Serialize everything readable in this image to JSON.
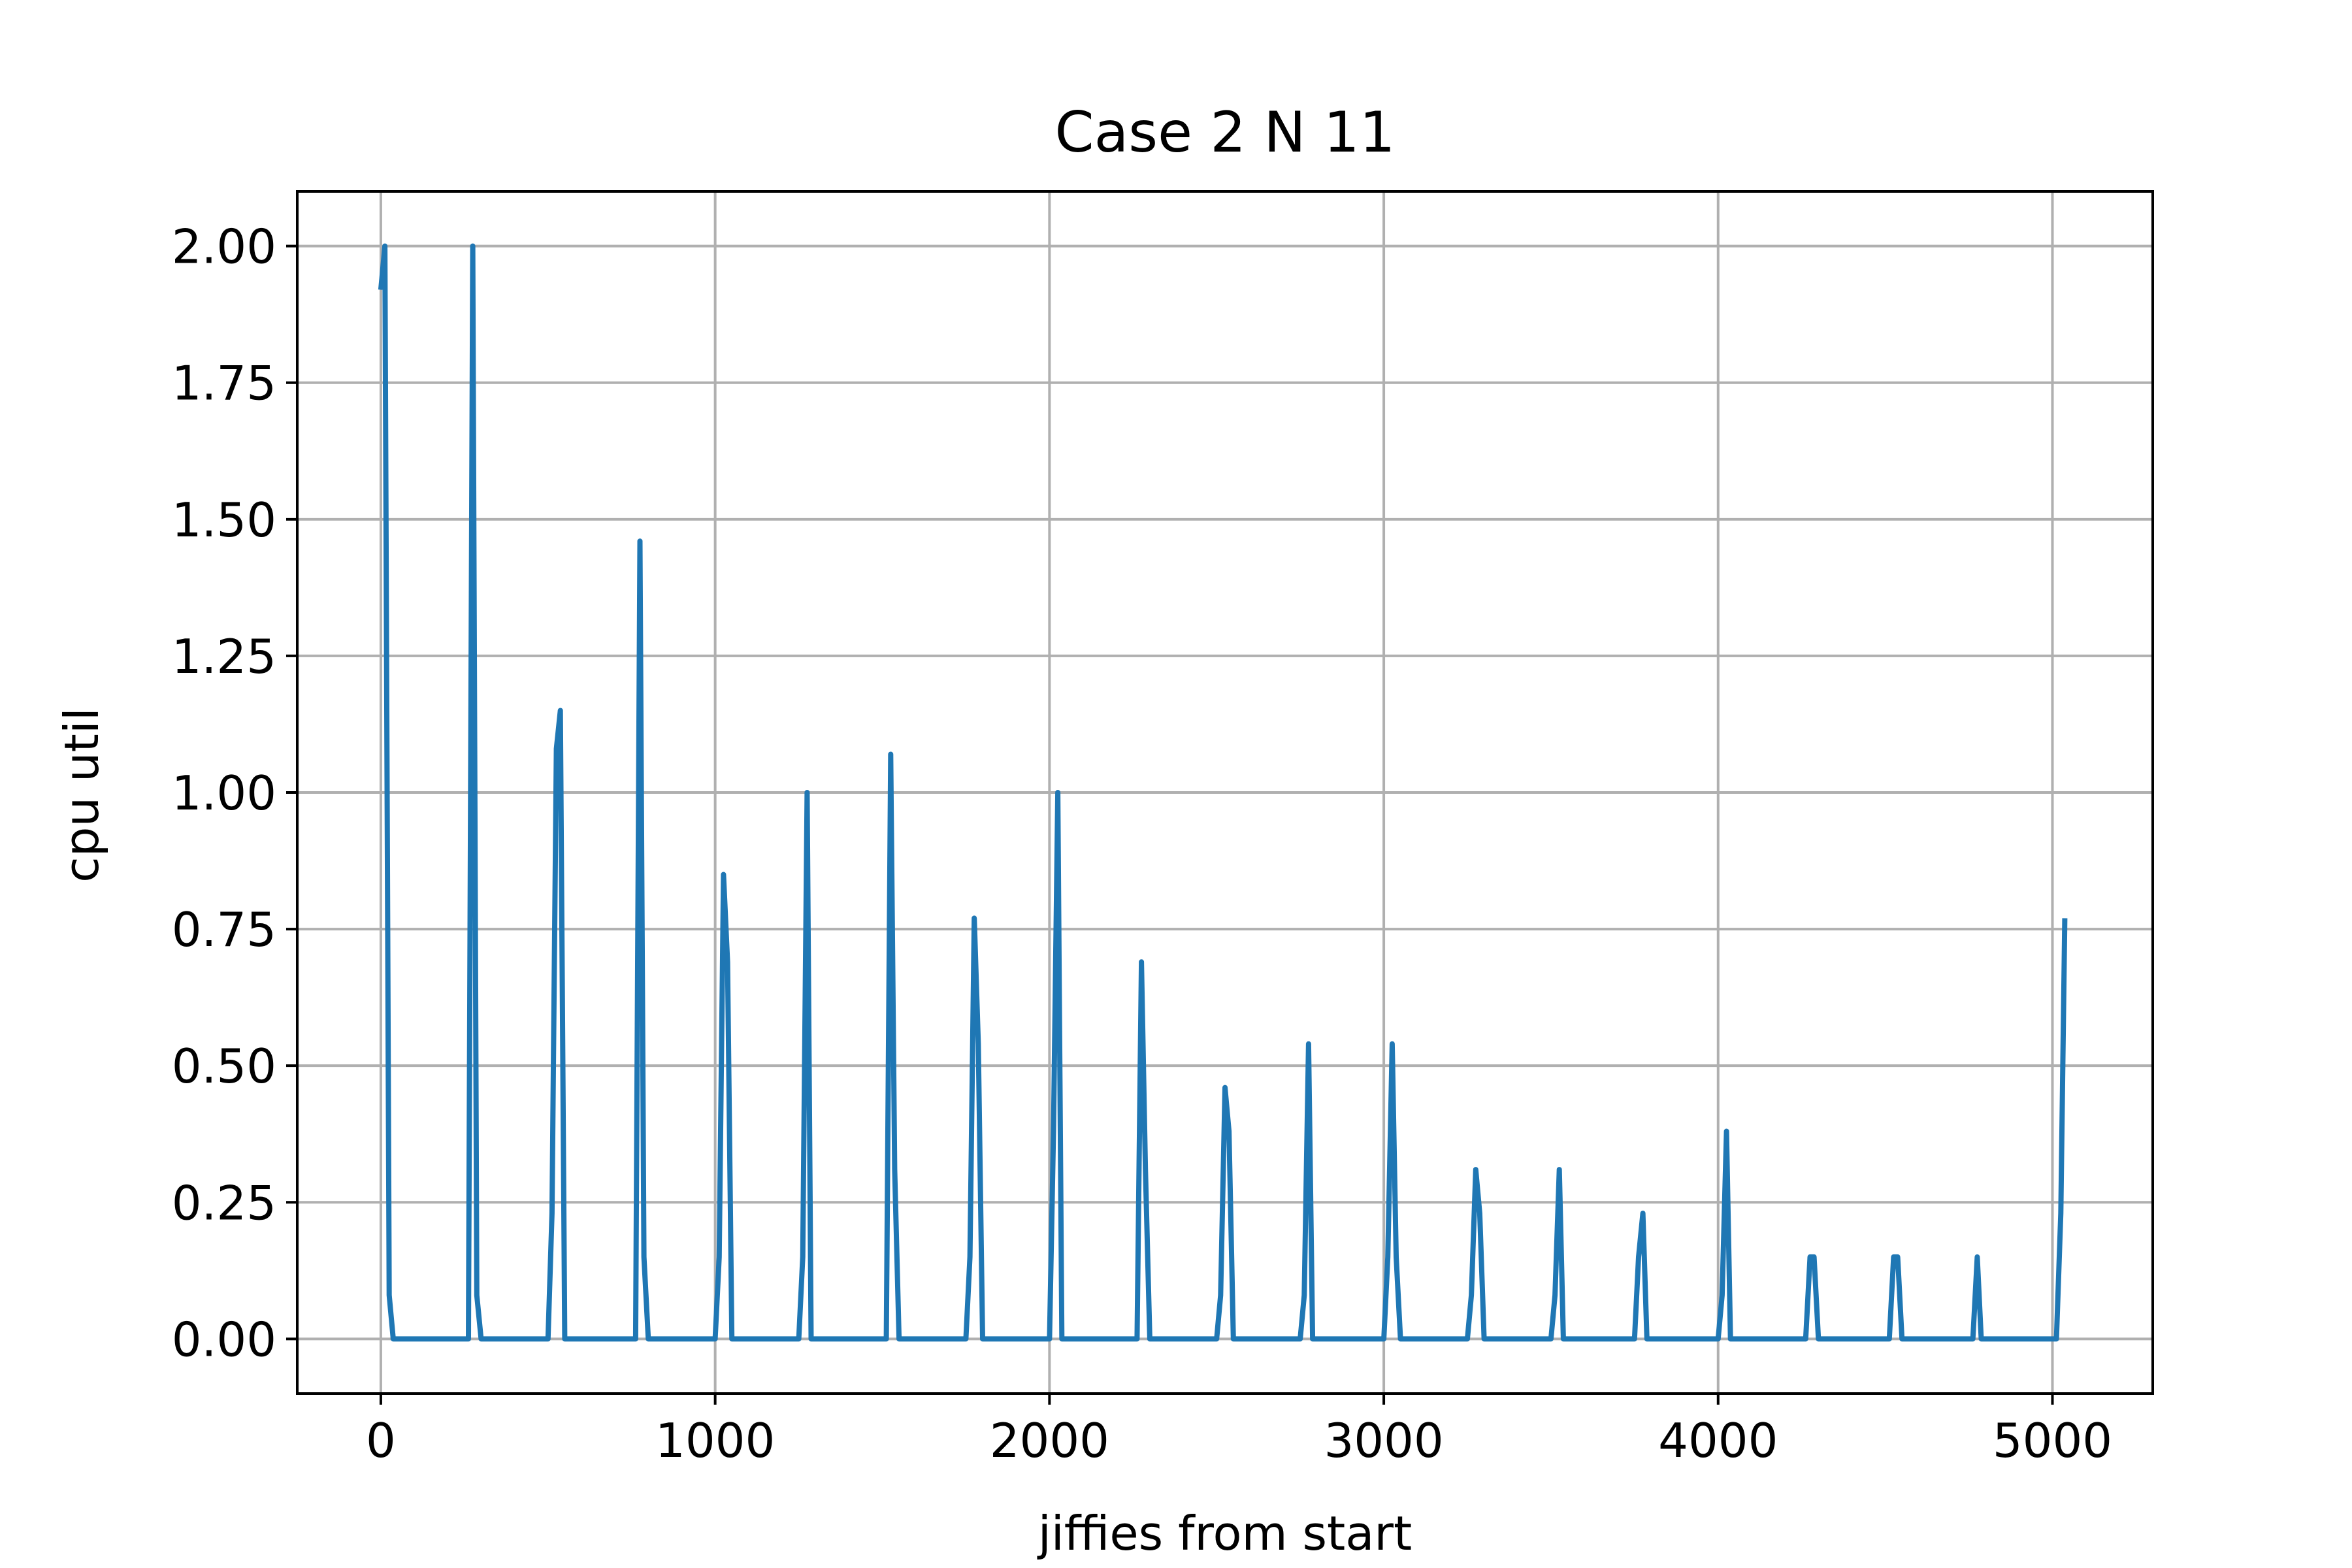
{
  "chart_data": {
    "type": "line",
    "title": "Case 2 N 11",
    "xlabel": "jiffies from start",
    "ylabel": "cpu util",
    "xlim": [
      -250,
      5300
    ],
    "ylim": [
      -0.1,
      2.1
    ],
    "grid": true,
    "x_ticks": [
      0,
      1000,
      2000,
      3000,
      4000,
      5000
    ],
    "x_tick_labels": [
      "0",
      "1000",
      "2000",
      "3000",
      "4000",
      "5000"
    ],
    "y_ticks": [
      0.0,
      0.25,
      0.5,
      0.75,
      1.0,
      1.25,
      1.5,
      1.75,
      2.0
    ],
    "y_tick_labels": [
      "0.00",
      "0.25",
      "0.50",
      "0.75",
      "1.00",
      "1.25",
      "1.50",
      "1.75",
      "2.00"
    ],
    "series": [
      {
        "color": "#1f77b4",
        "x": [
          0,
          12,
          25,
          37,
          50,
          250,
          262,
          275,
          287,
          300,
          500,
          512,
          525,
          537,
          550,
          750,
          762,
          775,
          787,
          800,
          1000,
          1012,
          1025,
          1037,
          1050,
          1250,
          1262,
          1275,
          1287,
          1300,
          1500,
          1512,
          1525,
          1537,
          1550,
          1750,
          1762,
          1775,
          1787,
          1800,
          2000,
          2012,
          2025,
          2037,
          2050,
          2250,
          2262,
          2275,
          2287,
          2300,
          2500,
          2512,
          2525,
          2537,
          2550,
          2750,
          2762,
          2775,
          2787,
          2800,
          3000,
          3012,
          3025,
          3037,
          3050,
          3250,
          3262,
          3275,
          3287,
          3300,
          3500,
          3512,
          3525,
          3537,
          3550,
          3750,
          3762,
          3775,
          3787,
          3800,
          4000,
          4012,
          4025,
          4037,
          4050,
          4250,
          4262,
          4275,
          4287,
          4300,
          4500,
          4512,
          4525,
          4537,
          4550,
          4750,
          4762,
          4775,
          4787,
          4800,
          5000,
          5012,
          5025,
          5037
        ],
        "y": [
          1.92,
          2.0,
          0.08,
          0.0,
          0.0,
          0.0,
          0.0,
          2.0,
          0.08,
          0.0,
          0.0,
          0.23,
          1.08,
          1.15,
          0.0,
          0.0,
          0.0,
          1.46,
          0.15,
          0.0,
          0.0,
          0.15,
          0.85,
          0.69,
          0.0,
          0.0,
          0.15,
          1.0,
          0.0,
          0.0,
          0.0,
          0.0,
          1.07,
          0.31,
          0.0,
          0.0,
          0.15,
          0.77,
          0.54,
          0.0,
          0.0,
          0.38,
          1.0,
          0.0,
          0.0,
          0.0,
          0.0,
          0.69,
          0.31,
          0.0,
          0.0,
          0.08,
          0.46,
          0.38,
          0.0,
          0.0,
          0.08,
          0.54,
          0.0,
          0.0,
          0.0,
          0.15,
          0.54,
          0.15,
          0.0,
          0.0,
          0.08,
          0.31,
          0.23,
          0.0,
          0.0,
          0.08,
          0.31,
          0.0,
          0.0,
          0.0,
          0.15,
          0.23,
          0.0,
          0.0,
          0.0,
          0.08,
          0.38,
          0.0,
          0.0,
          0.0,
          0.0,
          0.15,
          0.15,
          0.0,
          0.0,
          0.0,
          0.15,
          0.15,
          0.0,
          0.0,
          0.0,
          0.15,
          0.0,
          0.0,
          0.0,
          0.0,
          0.23,
          0.77
        ]
      }
    ]
  }
}
